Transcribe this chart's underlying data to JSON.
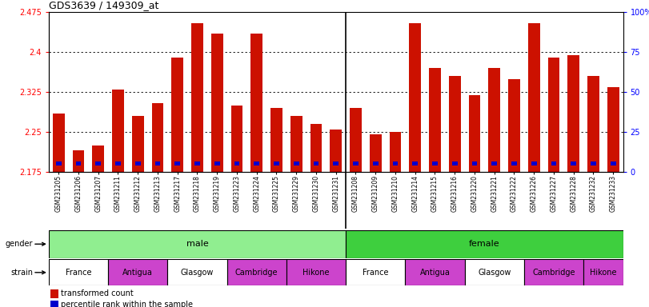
{
  "title": "GDS3639 / 149309_at",
  "samples": [
    "GSM231205",
    "GSM231206",
    "GSM231207",
    "GSM231211",
    "GSM231212",
    "GSM231213",
    "GSM231217",
    "GSM231218",
    "GSM231219",
    "GSM231223",
    "GSM231224",
    "GSM231225",
    "GSM231229",
    "GSM231230",
    "GSM231231",
    "GSM231208",
    "GSM231209",
    "GSM231210",
    "GSM231214",
    "GSM231215",
    "GSM231216",
    "GSM231220",
    "GSM231221",
    "GSM231222",
    "GSM231226",
    "GSM231227",
    "GSM231228",
    "GSM231232",
    "GSM231233"
  ],
  "red_values": [
    2.285,
    2.215,
    2.225,
    2.33,
    2.28,
    2.305,
    2.39,
    2.455,
    2.435,
    2.3,
    2.435,
    2.295,
    2.28,
    2.265,
    2.255,
    2.295,
    2.245,
    2.25,
    2.455,
    2.37,
    2.355,
    2.32,
    2.37,
    2.35,
    2.455,
    2.39,
    2.395,
    2.355,
    2.335
  ],
  "blue_percentiles": [
    10,
    10,
    10,
    10,
    10,
    10,
    10,
    10,
    10,
    10,
    10,
    10,
    10,
    10,
    10,
    10,
    10,
    10,
    10,
    10,
    10,
    10,
    10,
    10,
    10,
    10,
    10,
    10,
    10
  ],
  "ymin": 2.175,
  "ymax": 2.475,
  "yticks": [
    2.175,
    2.25,
    2.325,
    2.4,
    2.475
  ],
  "ytick_labels": [
    "2.175",
    "2.25",
    "2.325",
    "2.4",
    "2.475"
  ],
  "right_yticks": [
    0,
    25,
    50,
    75,
    100
  ],
  "right_ytick_labels": [
    "0",
    "25",
    "50",
    "75",
    "100%"
  ],
  "bar_color_red": "#cc1100",
  "bar_color_blue": "#0000cc",
  "chart_bg": "#ffffff",
  "tick_area_bg": "#d8d8d8",
  "gender_color_male": "#90ee90",
  "gender_color_female": "#3ecf3e",
  "strain_color_white": "#ffffff",
  "strain_color_violet": "#cc44cc",
  "male_count": 15,
  "female_count": 14,
  "strain_blocks_male": [
    [
      0,
      3,
      "France",
      "#ffffff"
    ],
    [
      3,
      6,
      "Antigua",
      "#cc44cc"
    ],
    [
      6,
      9,
      "Glasgow",
      "#ffffff"
    ],
    [
      9,
      12,
      "Cambridge",
      "#cc44cc"
    ],
    [
      12,
      15,
      "Hikone",
      "#cc44cc"
    ]
  ],
  "strain_blocks_female": [
    [
      15,
      18,
      "France",
      "#ffffff"
    ],
    [
      18,
      21,
      "Antigua",
      "#cc44cc"
    ],
    [
      21,
      24,
      "Glasgow",
      "#ffffff"
    ],
    [
      24,
      27,
      "Cambridge",
      "#cc44cc"
    ],
    [
      27,
      29,
      "Hikone",
      "#cc44cc"
    ]
  ]
}
